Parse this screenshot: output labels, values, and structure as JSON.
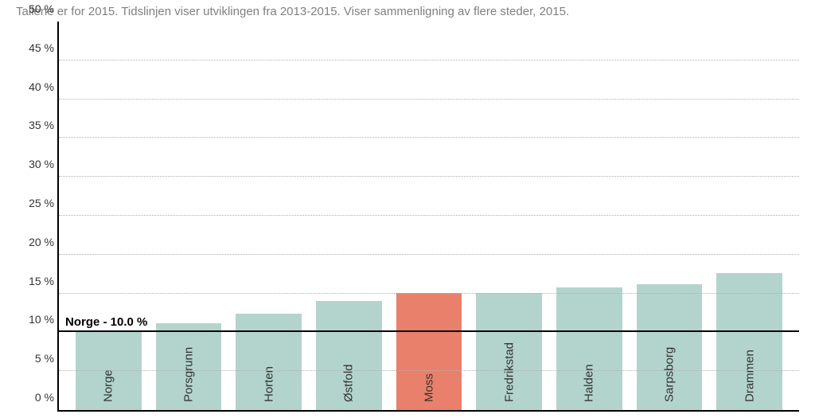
{
  "subtitle": "Tallene er for 2015. Tidslinjen viser utviklingen fra 2013-2015. Viser sammenligning av flere steder, 2015.",
  "chart": {
    "type": "bar",
    "ylim": [
      0,
      50
    ],
    "ytick_step": 5,
    "y_suffix": " %",
    "grid_color": "#b0b0b0",
    "axis_color": "#000000",
    "background_color": "#ffffff",
    "default_bar_color": "#b3d4cc",
    "highlight_bar_color": "#e9806b",
    "label_fontsize": 15,
    "tick_fontsize": 14,
    "reference": {
      "value": 10.0,
      "label": "Norge - 10.0 %"
    },
    "categories": [
      "Norge",
      "Porsgrunn",
      "Horten",
      "Østfold",
      "Moss",
      "Fredrikstad",
      "Halden",
      "Sarpsborg",
      "Drammen"
    ],
    "values": [
      10.0,
      11.2,
      12.4,
      14.0,
      15.1,
      15.1,
      15.8,
      16.2,
      17.6
    ],
    "highlight_index": 4
  }
}
